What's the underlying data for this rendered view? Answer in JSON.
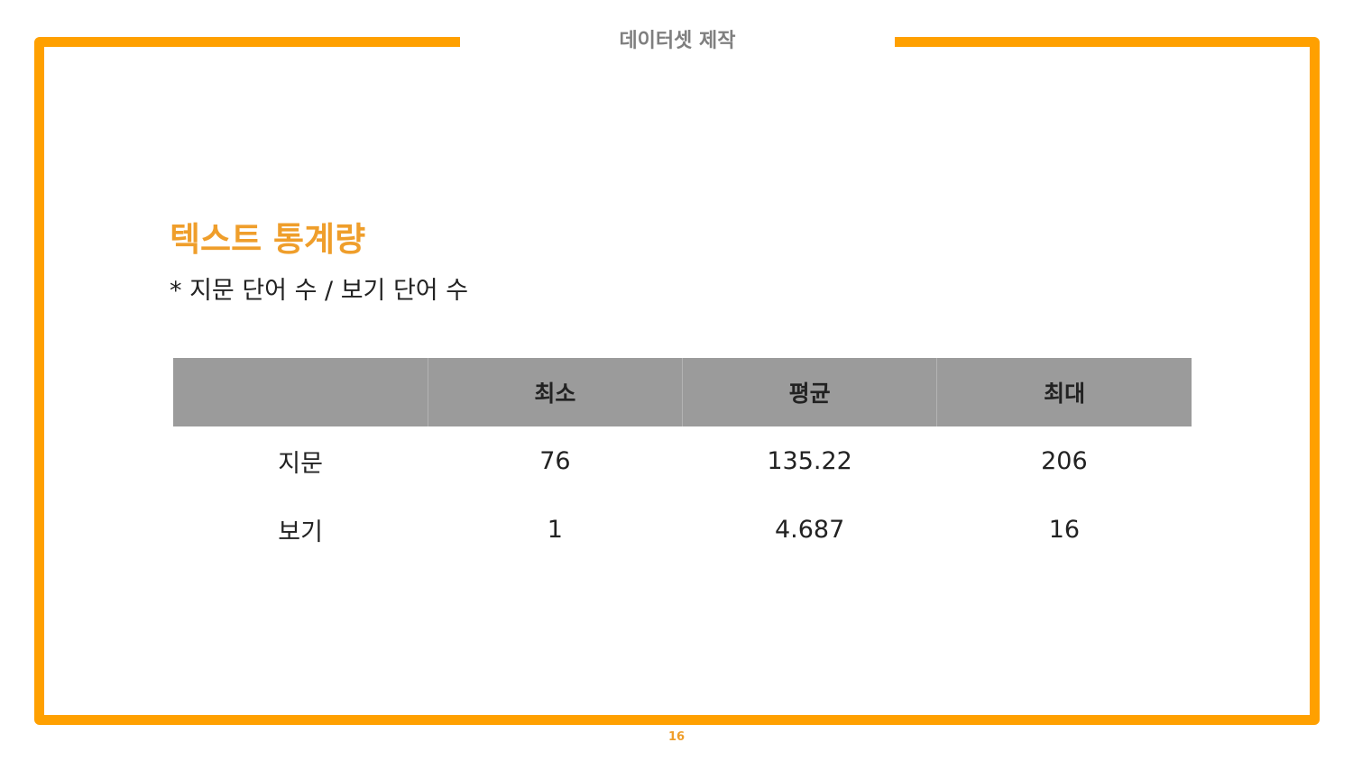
{
  "header": {
    "title": "데이터셋 제작"
  },
  "slide": {
    "title": "텍스트 통계량",
    "subtitle": "* 지문 단어 수 / 보기 단어 수"
  },
  "table": {
    "columns": [
      "",
      "최소",
      "평균",
      "최대"
    ],
    "rows": [
      [
        "지문",
        "76",
        "135.22",
        "206"
      ],
      [
        "보기",
        "1",
        "4.687",
        "16"
      ]
    ]
  },
  "footer": {
    "page_number": "16"
  },
  "colors": {
    "accent": "#ffa000",
    "title": "#ef9e2b",
    "header_text": "#7f7f7f",
    "table_header_bg": "#9b9b9b"
  }
}
